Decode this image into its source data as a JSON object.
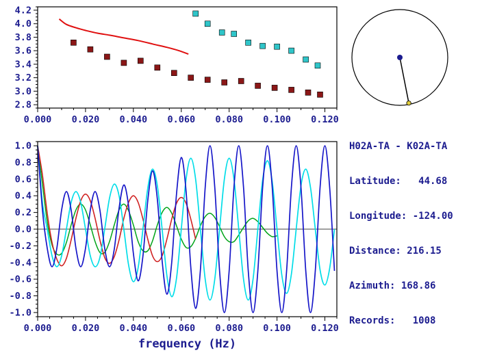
{
  "colors": {
    "text": "#1c1c8f",
    "axis": "#000000",
    "background": "#ffffff"
  },
  "info_panel": {
    "lines": [
      "H02A-TA - K02A-TA",
      "Latitude:   44.68",
      "Longitude: -124.00",
      "Distance: 216.15",
      "Azimuth: 168.86",
      "Records:   1008"
    ]
  },
  "chart_data": [
    {
      "name": "dispersion",
      "type": "scatter",
      "title": "",
      "xlabel": "",
      "ylabel": "",
      "xlim": [
        0,
        0.125
      ],
      "ylim": [
        2.75,
        4.25
      ],
      "xticks": [
        0,
        0.02,
        0.04,
        0.06,
        0.08,
        0.1,
        0.12
      ],
      "xtick_labels": [
        "0.000",
        "0.020",
        "0.040",
        "0.060",
        "0.080",
        "0.100",
        "0.120"
      ],
      "xminor": 0.005,
      "yticks": [
        2.8,
        3.0,
        3.2,
        3.4,
        3.6,
        3.8,
        4.0,
        4.2
      ],
      "ytick_labels": [
        "2.8",
        "3.0",
        "3.2",
        "3.4",
        "3.6",
        "3.8",
        "4.0",
        "4.2"
      ],
      "yminor": 0.05,
      "grid": false,
      "series": [
        {
          "name": "reference-curve-red",
          "type": "line",
          "color": "#e01010",
          "width": 2,
          "x": [
            0.009,
            0.012,
            0.016,
            0.02,
            0.025,
            0.03,
            0.036,
            0.042,
            0.048,
            0.054,
            0.059,
            0.063
          ],
          "y": [
            4.07,
            3.99,
            3.94,
            3.9,
            3.86,
            3.83,
            3.79,
            3.75,
            3.7,
            3.65,
            3.6,
            3.55
          ]
        },
        {
          "name": "picks-dark-red",
          "type": "scatter",
          "marker": "square",
          "color": "#8b1717",
          "x": [
            0.015,
            0.022,
            0.029,
            0.036,
            0.043,
            0.05,
            0.057,
            0.064,
            0.071,
            0.078,
            0.085,
            0.092,
            0.099,
            0.106,
            0.113,
            0.118
          ],
          "y": [
            3.72,
            3.62,
            3.51,
            3.42,
            3.45,
            3.35,
            3.27,
            3.2,
            3.17,
            3.13,
            3.15,
            3.08,
            3.05,
            3.02,
            2.98,
            2.95
          ]
        },
        {
          "name": "picks-cyan",
          "type": "scatter",
          "marker": "square",
          "color": "#2fc5c9",
          "x": [
            0.066,
            0.071,
            0.077,
            0.082,
            0.088,
            0.094,
            0.1,
            0.106,
            0.112,
            0.117
          ],
          "y": [
            4.15,
            4.0,
            3.87,
            3.85,
            3.72,
            3.67,
            3.66,
            3.6,
            3.47,
            3.38
          ]
        }
      ]
    },
    {
      "name": "correlation",
      "type": "line",
      "title": "",
      "xlabel": "frequency (Hz)",
      "ylabel": "",
      "xlim": [
        0,
        0.125
      ],
      "ylim": [
        -1.05,
        1.05
      ],
      "xticks": [
        0,
        0.02,
        0.04,
        0.06,
        0.08,
        0.1,
        0.12
      ],
      "xtick_labels": [
        "0.000",
        "0.020",
        "0.040",
        "0.060",
        "0.080",
        "0.100",
        "0.120"
      ],
      "xminor": 0.005,
      "yticks": [
        -1.0,
        -0.8,
        -0.6,
        -0.4,
        -0.2,
        0.0,
        0.2,
        0.4,
        0.6,
        0.8,
        1.0
      ],
      "ytick_labels": [
        "-1.0",
        "-0.8",
        "-0.6",
        "-0.4",
        "-0.2",
        "0.0",
        "0.2",
        "0.4",
        "0.6",
        "0.8",
        "1.0"
      ],
      "yminor": 0.05,
      "zero_line": true,
      "grid": false,
      "series": [
        {
          "name": "waveform-green",
          "type": "line",
          "color": "#00a418",
          "width": 1.5,
          "x_start": 0,
          "x_step": 0.002,
          "y": [
            1.0,
            0.54,
            0.09,
            -0.19,
            -0.3,
            -0.29,
            -0.16,
            0.05,
            0.23,
            0.3,
            0.23,
            0.05,
            -0.15,
            -0.28,
            -0.28,
            -0.15,
            0.05,
            0.23,
            0.3,
            0.22,
            0.05,
            -0.15,
            -0.26,
            -0.26,
            -0.14,
            0.05,
            0.2,
            0.26,
            0.19,
            0.04,
            -0.12,
            -0.22,
            -0.21,
            -0.11,
            0.04,
            0.15,
            0.19,
            0.14,
            0.03,
            -0.09,
            -0.15,
            -0.15,
            -0.07,
            0.02,
            0.1,
            0.13,
            0.09,
            0.02,
            -0.05,
            -0.09,
            -0.08
          ]
        },
        {
          "name": "waveform-red",
          "type": "line",
          "color": "#d02020",
          "width": 1.6,
          "x_start": 0,
          "x_step": 0.002,
          "y": [
            1.0,
            0.65,
            0.19,
            -0.16,
            -0.36,
            -0.44,
            -0.35,
            -0.13,
            0.13,
            0.34,
            0.42,
            0.34,
            0.13,
            -0.13,
            -0.34,
            -0.41,
            -0.33,
            -0.13,
            0.13,
            0.32,
            0.4,
            0.32,
            0.12,
            -0.12,
            -0.32,
            -0.39,
            -0.32,
            -0.12,
            0.12,
            0.31,
            0.38,
            0.31,
            0.12,
            -0.12
          ]
        },
        {
          "name": "waveform-cyan",
          "type": "line",
          "color": "#00dde8",
          "width": 1.7,
          "x_start": 0,
          "x_step": 0.002,
          "y": [
            1.0,
            0.32,
            0.0,
            -0.32,
            -0.45,
            -0.32,
            0.0,
            0.32,
            0.45,
            0.32,
            0.0,
            -0.32,
            -0.45,
            -0.34,
            0.0,
            0.37,
            0.54,
            0.4,
            0.0,
            -0.43,
            -0.63,
            -0.46,
            0.0,
            0.49,
            0.72,
            0.52,
            0.0,
            -0.56,
            -0.81,
            -0.59,
            0.0,
            0.6,
            0.85,
            0.6,
            0.0,
            -0.6,
            -0.85,
            -0.6,
            0.0,
            0.6,
            0.85,
            0.6,
            0.0,
            -0.6,
            -0.85,
            -0.6,
            0.0,
            0.59,
            0.82,
            0.57,
            0.0,
            -0.55,
            -0.77,
            -0.54,
            0.0,
            0.52,
            0.72,
            0.5,
            0.0,
            -0.49,
            -0.67,
            -0.47,
            0.0
          ]
        },
        {
          "name": "waveform-blue",
          "type": "line",
          "color": "#1515c8",
          "width": 1.7,
          "x_start": 0,
          "x_step": 0.002,
          "y": [
            1.0,
            0.23,
            -0.23,
            -0.45,
            -0.23,
            0.23,
            0.45,
            0.23,
            -0.23,
            -0.45,
            -0.23,
            0.23,
            0.45,
            0.23,
            -0.23,
            -0.45,
            -0.24,
            0.25,
            0.53,
            0.28,
            -0.29,
            -0.62,
            -0.32,
            0.34,
            0.7,
            0.36,
            -0.38,
            -0.78,
            -0.4,
            0.42,
            0.86,
            0.45,
            -0.46,
            -0.95,
            -0.49,
            0.5,
            1.0,
            0.5,
            -0.5,
            -1.0,
            -0.5,
            0.5,
            1.0,
            0.5,
            -0.5,
            -1.0,
            -0.5,
            0.5,
            1.0,
            0.5,
            -0.5,
            -1.0,
            -0.5,
            0.5,
            1.0,
            0.5,
            -0.5,
            -1.0,
            -0.5,
            0.5,
            1.0,
            0.5,
            -0.5
          ]
        }
      ]
    },
    {
      "name": "azimuth-dial",
      "type": "dial",
      "azimuth_deg": 168.86,
      "center_dot_color": "#1c1c8f",
      "end_dot_color": "#e0cc3a"
    }
  ]
}
